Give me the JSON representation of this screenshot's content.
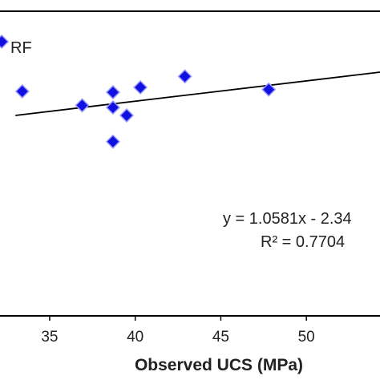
{
  "chart_data": {
    "type": "scatter",
    "xlabel": "Observed UCS (MPa)",
    "xticks": [
      "35",
      "40",
      "45",
      "50"
    ],
    "xlim": [
      32.1,
      54.3
    ],
    "ylim": [
      0,
      100
    ],
    "grid": false,
    "legend": "none",
    "series": [
      {
        "marker_color": "#1010e0",
        "points": [
          {
            "x": 33.4,
            "y": 73.7
          },
          {
            "x": 36.9,
            "y": 69.1
          },
          {
            "x": 38.7,
            "y": 73.4
          },
          {
            "x": 38.7,
            "y": 68.4
          },
          {
            "x": 38.7,
            "y": 57.2
          },
          {
            "x": 39.5,
            "y": 65.8
          },
          {
            "x": 40.3,
            "y": 75.0
          },
          {
            "x": 42.9,
            "y": 78.6
          },
          {
            "x": 47.8,
            "y": 74.3
          },
          {
            "x": 32.2,
            "y": 90.0,
            "label": "RF"
          }
        ]
      }
    ],
    "trendline": {
      "x": [
        33.0,
        54.3
      ],
      "y": [
        65.8,
        80.0
      ],
      "color": "#000000"
    },
    "annotations": {
      "equation": "y = 1.0581x - 2.34",
      "r_squared": "R² = 0.7704"
    },
    "point_label": "RF"
  }
}
